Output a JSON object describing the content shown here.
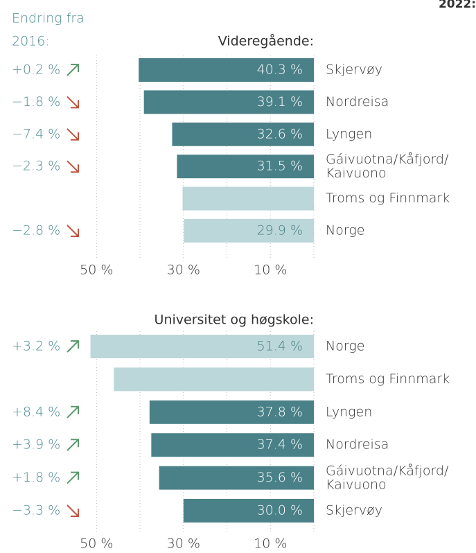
{
  "header": {
    "corner_label": "2022:",
    "change_header": [
      "Endring fra",
      "2016:"
    ]
  },
  "chart_data": [
    {
      "type": "hbar",
      "title": "Videregående:",
      "categories": [
        "Skjervøy",
        "Nordreisa",
        "Lyngen",
        "Gáivuotna/Kåfjord/\nKaivuono",
        "Troms og Finnmark",
        "Norge"
      ],
      "values": [
        40.3,
        39.1,
        32.6,
        31.5,
        30.2,
        29.9
      ],
      "value_labels": [
        "40.3 %",
        "39.1 %",
        "32.6 %",
        "31.5 %",
        null,
        "29.9 %"
      ],
      "colors": [
        "#4a8188",
        "#4a8188",
        "#4a8188",
        "#4a8188",
        "#bcd7d9",
        "#bcd7d9"
      ],
      "change_values": [
        0.2,
        -1.8,
        -7.4,
        -2.3,
        null,
        -2.8
      ],
      "change_labels": [
        "+0.2 %",
        "−1.8 %",
        "−7.4 %",
        "−2.3 %",
        null,
        "−2.8 %"
      ],
      "xlim": [
        0,
        51.8
      ],
      "xticks": [
        {
          "value": 50,
          "label": "50 %"
        },
        {
          "value": 30,
          "label": "30 %"
        },
        {
          "value": 10,
          "label": "10 %"
        }
      ],
      "xminorticks": [
        40,
        20,
        0
      ],
      "grid": true
    },
    {
      "type": "hbar",
      "title": "Universitet og høgskole:",
      "categories": [
        "Norge",
        "Troms og Finnmark",
        "Lyngen",
        "Nordreisa",
        "Gáivuotna/Kåfjord/\nKaivuono",
        "Skjervøy"
      ],
      "values": [
        51.4,
        46.0,
        37.8,
        37.4,
        35.6,
        30.0
      ],
      "value_labels": [
        "51.4 %",
        null,
        "37.8 %",
        "37.4 %",
        "35.6 %",
        "30.0 %"
      ],
      "colors": [
        "#bcd7d9",
        "#bcd7d9",
        "#4a8188",
        "#4a8188",
        "#4a8188",
        "#4a8188"
      ],
      "change_values": [
        3.2,
        null,
        8.4,
        3.9,
        1.8,
        -3.3
      ],
      "change_labels": [
        "+3.2 %",
        null,
        "+8.4 %",
        "+3.9 %",
        "+1.8 %",
        "−3.3 %"
      ],
      "xlim": [
        0,
        51.8
      ],
      "xticks": [
        {
          "value": 50,
          "label": "50 %"
        },
        {
          "value": 30,
          "label": "30 %"
        },
        {
          "value": 10,
          "label": "10 %"
        }
      ],
      "xminorticks": [
        40,
        20,
        0
      ],
      "grid": true
    }
  ]
}
